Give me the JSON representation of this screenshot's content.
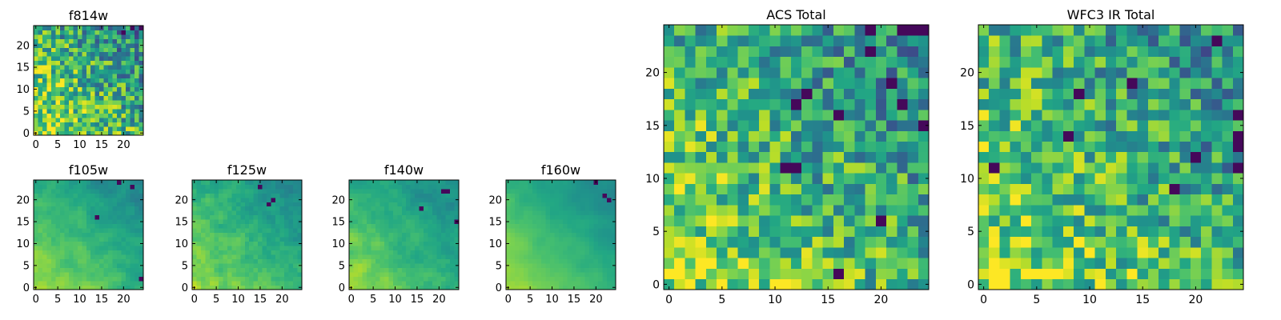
{
  "figure": {
    "description_panels": 7
  },
  "chart_data": [
    {
      "type": "heatmap",
      "id": "f814w",
      "title": "f814w",
      "grid_size": 25,
      "colormap": "viridis",
      "xticks": [
        0,
        5,
        10,
        15,
        20
      ],
      "yticks": [
        0,
        5,
        10,
        15,
        20
      ],
      "xlim": [
        0,
        24
      ],
      "ylim": [
        0,
        24
      ],
      "trend": "bright lower-left, darker upper-right; high-frequency noise",
      "smooth": 0.0,
      "noise": 0.3,
      "dark_spots": [
        [
          22,
          24
        ],
        [
          20,
          23
        ],
        [
          24,
          24
        ]
      ]
    },
    {
      "type": "heatmap",
      "id": "f105w",
      "title": "f105w",
      "grid_size": 25,
      "colormap": "viridis",
      "xticks": [
        0,
        5,
        10,
        15,
        20
      ],
      "yticks": [
        0,
        5,
        10,
        15,
        20
      ],
      "xlim": [
        0,
        24
      ],
      "ylim": [
        0,
        24
      ],
      "trend": "bright lower-left, dark upper-right",
      "smooth": 0.6,
      "noise": 0.15,
      "dark_spots": [
        [
          22,
          23
        ],
        [
          19,
          24
        ],
        [
          14,
          16
        ],
        [
          24,
          2
        ]
      ]
    },
    {
      "type": "heatmap",
      "id": "f125w",
      "title": "f125w",
      "grid_size": 25,
      "colormap": "viridis",
      "xticks": [
        0,
        5,
        10,
        15,
        20
      ],
      "yticks": [
        0,
        5,
        10,
        15,
        20
      ],
      "xlim": [
        0,
        24
      ],
      "ylim": [
        0,
        24
      ],
      "trend": "mostly bright yellow-green, dark spot top-right",
      "smooth": 0.5,
      "noise": 0.15,
      "dark_spots": [
        [
          17,
          19
        ],
        [
          18,
          20
        ],
        [
          15,
          23
        ]
      ]
    },
    {
      "type": "heatmap",
      "id": "f140w",
      "title": "f140w",
      "grid_size": 25,
      "colormap": "viridis",
      "xticks": [
        0,
        5,
        10,
        15,
        20
      ],
      "yticks": [
        0,
        5,
        10,
        15,
        20
      ],
      "xlim": [
        0,
        24
      ],
      "ylim": [
        0,
        24
      ],
      "trend": "bright lower half, dark upper-right corner",
      "smooth": 0.6,
      "noise": 0.15,
      "dark_spots": [
        [
          21,
          22
        ],
        [
          22,
          22
        ],
        [
          24,
          15
        ],
        [
          16,
          18
        ]
      ]
    },
    {
      "type": "heatmap",
      "id": "f160w",
      "title": "f160w",
      "grid_size": 25,
      "colormap": "viridis",
      "xticks": [
        0,
        5,
        10,
        15,
        20
      ],
      "yticks": [
        0,
        5,
        10,
        15,
        20
      ],
      "xlim": [
        0,
        24
      ],
      "ylim": [
        0,
        24
      ],
      "trend": "smooth gradient bright lower-left to dark upper-right",
      "smooth": 0.75,
      "noise": 0.1,
      "dark_spots": [
        [
          22,
          21
        ],
        [
          23,
          20
        ],
        [
          20,
          24
        ]
      ]
    },
    {
      "type": "heatmap",
      "id": "acs_total",
      "title": "ACS Total",
      "grid_size": 25,
      "colormap": "viridis",
      "xticks": [
        0,
        5,
        10,
        15,
        20
      ],
      "yticks": [
        0,
        5,
        10,
        15,
        20
      ],
      "xlim": [
        0,
        24
      ],
      "ylim": [
        0,
        24
      ],
      "trend": "bright lower-left, darker upper-right; blocky noise",
      "smooth": 0.0,
      "noise": 0.28,
      "dark_spots": [
        [
          22,
          24
        ],
        [
          23,
          24
        ],
        [
          24,
          24
        ],
        [
          19,
          24
        ],
        [
          19,
          22
        ],
        [
          22,
          17
        ],
        [
          16,
          16
        ],
        [
          11,
          11
        ],
        [
          12,
          11
        ],
        [
          24,
          15
        ],
        [
          21,
          19
        ],
        [
          13,
          18
        ],
        [
          12,
          17
        ],
        [
          16,
          1
        ],
        [
          20,
          6
        ]
      ]
    },
    {
      "type": "heatmap",
      "id": "wfc3_ir_total",
      "title": "WFC3 IR Total",
      "grid_size": 25,
      "colormap": "viridis",
      "xticks": [
        0,
        5,
        10,
        15,
        20
      ],
      "yticks": [
        0,
        5,
        10,
        15,
        20
      ],
      "xlim": [
        0,
        24
      ],
      "ylim": [
        0,
        24
      ],
      "trend": "bright lower-left, darker upper-right; blocky noise",
      "smooth": 0.0,
      "noise": 0.28,
      "dark_spots": [
        [
          22,
          23
        ],
        [
          14,
          19
        ],
        [
          9,
          18
        ],
        [
          8,
          14
        ],
        [
          1,
          11
        ],
        [
          20,
          12
        ],
        [
          18,
          9
        ],
        [
          24,
          14
        ],
        [
          24,
          13
        ],
        [
          24,
          11
        ],
        [
          24,
          16
        ]
      ]
    }
  ]
}
